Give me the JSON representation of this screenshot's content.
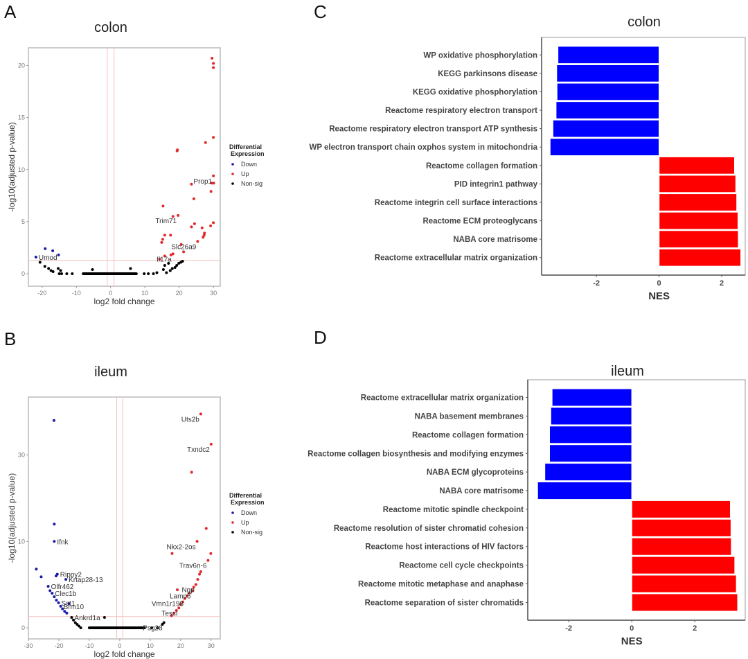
{
  "chart_data": [
    {
      "id": "A",
      "type": "scatter",
      "panel_letter": "A",
      "title": "colon",
      "xlabel": "log2 fold change",
      "ylabel": "-log10(adjusted p-value)",
      "xlim": [
        -24,
        32
      ],
      "ylim": [
        -1.2,
        21.7
      ],
      "x_ticks": [
        -20,
        -10,
        0,
        10,
        20,
        30
      ],
      "y_ticks": [
        0,
        5,
        10,
        15,
        20
      ],
      "fc_threshold_lines": [
        -1,
        1
      ],
      "p_threshold_line": 1.3,
      "legend": {
        "title": "Differential Expression",
        "position": "right",
        "entries": [
          {
            "label": "Down",
            "color": "#1a1aa8"
          },
          {
            "label": "Up",
            "color": "#e0282e"
          },
          {
            "label": "Non-sig",
            "color": "#000000"
          }
        ]
      },
      "series": [
        {
          "name": "Down",
          "points": [
            [
              -21.8,
              1.6
            ],
            [
              -19.1,
              2.4
            ],
            [
              -16.9,
              2.2
            ],
            [
              -15.2,
              1.8
            ]
          ]
        },
        {
          "name": "Up",
          "points": [
            [
              29.6,
              20.7
            ],
            [
              30.0,
              20.2
            ],
            [
              30.0,
              19.8
            ],
            [
              30.0,
              13.1
            ],
            [
              27.7,
              12.6
            ],
            [
              19.4,
              11.8
            ],
            [
              19.5,
              11.9
            ],
            [
              30.0,
              9.4
            ],
            [
              29.5,
              8.7
            ],
            [
              30.1,
              8.7
            ],
            [
              23.6,
              8.6
            ],
            [
              29.3,
              7.9
            ],
            [
              24.3,
              7.2
            ],
            [
              15.3,
              6.5
            ],
            [
              18.2,
              5.5
            ],
            [
              19.7,
              5.6
            ],
            [
              24.5,
              4.8
            ],
            [
              30.0,
              4.9
            ],
            [
              29.2,
              4.6
            ],
            [
              23.6,
              4.5
            ],
            [
              26.7,
              4.4
            ],
            [
              15.8,
              3.7
            ],
            [
              17.5,
              3.7
            ],
            [
              27.4,
              3.9
            ],
            [
              27.3,
              3.7
            ],
            [
              27.0,
              3.5
            ],
            [
              15.2,
              3.3
            ],
            [
              14.9,
              3.0
            ],
            [
              25.4,
              3.1
            ],
            [
              20.6,
              2.8
            ],
            [
              21.3,
              2.1
            ],
            [
              18.2,
              1.9
            ],
            [
              14.3,
              1.4
            ],
            [
              15.8,
              1.7
            ],
            [
              17.6,
              1.8
            ]
          ]
        },
        {
          "name": "Non-sig",
          "points": [
            [
              -20.6,
              1.1
            ],
            [
              -19.2,
              0.7
            ],
            [
              -18.1,
              0.5
            ],
            [
              -17.4,
              0.3
            ],
            [
              -16.8,
              0.2
            ],
            [
              -15.3,
              0.5
            ],
            [
              -14.6,
              0.3
            ],
            [
              -15.0,
              0.0
            ],
            [
              -14.3,
              0.0
            ],
            [
              -12.8,
              0.0
            ],
            [
              -11.2,
              0.0
            ],
            [
              -5.3,
              0.4
            ],
            [
              5.8,
              0.5
            ],
            [
              -8.0,
              0.0
            ],
            [
              -6.0,
              0.0
            ],
            [
              -4.0,
              0.0
            ],
            [
              -2.0,
              0.0
            ],
            [
              0.0,
              0.0
            ],
            [
              2.0,
              0.0
            ],
            [
              4.0,
              0.0
            ],
            [
              6.0,
              0.0
            ],
            [
              7.5,
              0.0
            ],
            [
              9.8,
              0.0
            ],
            [
              11.0,
              0.0
            ],
            [
              12.5,
              0.0
            ],
            [
              13.5,
              0.1
            ],
            [
              15.4,
              0.4
            ],
            [
              15.8,
              0.8
            ],
            [
              16.3,
              0.1
            ],
            [
              16.9,
              1.0
            ],
            [
              17.4,
              0.3
            ],
            [
              18.0,
              0.5
            ],
            [
              18.8,
              0.6
            ],
            [
              19.3,
              0.8
            ],
            [
              19.9,
              1.0
            ],
            [
              20.5,
              1.1
            ],
            [
              21.0,
              1.2
            ]
          ]
        }
      ],
      "annotations": [
        {
          "label": "Prop1",
          "x": 30.0,
          "y": 9.4
        },
        {
          "label": "Trim71",
          "x": 19.7,
          "y": 5.6
        },
        {
          "label": "Slc26a9",
          "x": 25.4,
          "y": 3.1
        },
        {
          "label": "Il17a",
          "x": 18.2,
          "y": 1.9
        },
        {
          "label": "Umod",
          "x": -21.8,
          "y": 1.6
        }
      ]
    },
    {
      "id": "B",
      "type": "scatter",
      "panel_letter": "B",
      "title": "ileum",
      "xlabel": "log2 fold change",
      "ylabel": "-log10(adjusted p-value)",
      "xlim": [
        -30,
        33
      ],
      "y_scale_note": "non-linear axis; tick labels 0, 10, 30 equally spaced",
      "y_ticks": [
        0,
        10,
        30
      ],
      "x_ticks": [
        -30,
        -20,
        -10,
        0,
        10,
        20,
        30
      ],
      "fc_threshold_lines": [
        -1,
        1
      ],
      "p_threshold_line": 1.3,
      "legend": {
        "title": "Differential Expression",
        "position": "right",
        "entries": [
          {
            "label": "Down",
            "color": "#1a1aa8"
          },
          {
            "label": "Up",
            "color": "#e0282e"
          },
          {
            "label": "Non-sig",
            "color": "#000000"
          }
        ]
      },
      "series": [
        {
          "name": "Down",
          "points": [
            [
              -21.6,
              38.0
            ],
            [
              -21.5,
              14.0
            ],
            [
              -21.5,
              10.0
            ],
            [
              -27.4,
              6.8
            ],
            [
              -25.8,
              5.9
            ],
            [
              -20.5,
              6.2
            ],
            [
              -20.9,
              6.0
            ],
            [
              -17.7,
              5.6
            ],
            [
              -23.5,
              4.8
            ],
            [
              -22.9,
              4.3
            ],
            [
              -22.2,
              4.0
            ],
            [
              -21.5,
              3.6
            ],
            [
              -20.8,
              3.2
            ],
            [
              -20.1,
              2.9
            ],
            [
              -19.4,
              2.5
            ],
            [
              -18.8,
              2.2
            ],
            [
              -18.1,
              1.9
            ],
            [
              -17.4,
              1.7
            ],
            [
              -16.7,
              2.8
            ]
          ]
        },
        {
          "name": "Up",
          "points": [
            [
              26.6,
              39.5
            ],
            [
              30.0,
              32.5
            ],
            [
              23.6,
              26.0
            ],
            [
              28.4,
              13.0
            ],
            [
              25.4,
              10.0
            ],
            [
              17.2,
              8.6
            ],
            [
              29.9,
              8.6
            ],
            [
              29.0,
              7.8
            ],
            [
              26.6,
              6.5
            ],
            [
              26.2,
              6.2
            ],
            [
              25.6,
              5.6
            ],
            [
              25.0,
              5.0
            ],
            [
              24.3,
              4.7
            ],
            [
              23.8,
              4.3
            ],
            [
              18.9,
              4.4
            ],
            [
              22.9,
              4.0
            ],
            [
              22.1,
              3.7
            ],
            [
              21.4,
              3.4
            ],
            [
              20.7,
              3.0
            ],
            [
              20.0,
              2.7
            ],
            [
              19.4,
              2.3
            ],
            [
              18.6,
              2.0
            ],
            [
              17.8,
              1.7
            ],
            [
              17.0,
              1.4
            ]
          ]
        },
        {
          "name": "Non-sig",
          "points": [
            [
              -15.8,
              1.2
            ],
            [
              -15.2,
              0.9
            ],
            [
              -14.6,
              0.6
            ],
            [
              -14.0,
              0.4
            ],
            [
              -13.4,
              0.2
            ],
            [
              -12.8,
              0.0
            ],
            [
              -5.0,
              1.2
            ],
            [
              -10.0,
              0.0
            ],
            [
              -8.0,
              0.0
            ],
            [
              -6.0,
              0.0
            ],
            [
              -4.0,
              0.0
            ],
            [
              -2.0,
              0.0
            ],
            [
              0.0,
              0.0
            ],
            [
              2.0,
              0.0
            ],
            [
              4.0,
              0.0
            ],
            [
              6.0,
              0.0
            ],
            [
              8.0,
              0.0
            ],
            [
              10.5,
              0.0
            ],
            [
              12.4,
              0.0
            ],
            [
              14.0,
              0.4
            ],
            [
              14.5,
              0.6
            ]
          ]
        }
      ],
      "annotations": [
        {
          "label": "Uts2b",
          "x": 26.6,
          "y": 39.5
        },
        {
          "label": "Txndc2",
          "x": 30.0,
          "y": 32.5
        },
        {
          "label": "Ifnk",
          "x": -21.5,
          "y": 10.0
        },
        {
          "label": "Nkx2-2os",
          "x": 25.4,
          "y": 10.0
        },
        {
          "label": "Trav6n-6",
          "x": 29.0,
          "y": 7.8
        },
        {
          "label": "Rippy2",
          "x": -20.5,
          "y": 6.2
        },
        {
          "label": "Krtap28-13",
          "x": -17.7,
          "y": 5.6
        },
        {
          "label": "Olfr462",
          "x": -23.5,
          "y": 4.8
        },
        {
          "label": "Clec1b",
          "x": -22.2,
          "y": 4.0
        },
        {
          "label": "Ngp",
          "x": 25.0,
          "y": 5.0
        },
        {
          "label": "Lamp5",
          "x": 23.8,
          "y": 4.3
        },
        {
          "label": "Vmn1r198",
          "x": 21.4,
          "y": 3.4
        },
        {
          "label": "Sst1",
          "x": -20.1,
          "y": 2.9
        },
        {
          "label": "Brm10",
          "x": -19.4,
          "y": 2.5
        },
        {
          "label": "Tescl",
          "x": 19.4,
          "y": 2.3
        },
        {
          "label": "Ankrd1a",
          "x": -15.8,
          "y": 1.2
        },
        {
          "label": "Psg28",
          "x": 14.5,
          "y": 0.6
        }
      ]
    },
    {
      "id": "C",
      "type": "bar",
      "orientation": "horizontal",
      "panel_letter": "C",
      "title": "colon",
      "xlabel": "NES",
      "xlim": [
        -3.75,
        2.75
      ],
      "x_ticks": [
        -2,
        0,
        2
      ],
      "categories": [
        "WP oxidative phosphorylation",
        "KEGG parkinsons disease",
        "KEGG oxidative phosphorylation",
        "Reactome respiratory electron transport",
        "Reactome respiratory electron transport ATP synthesis",
        "WP electron transport chain oxphos system in mitochondria",
        "Reactome collagen formation",
        "PID integrin1 pathway",
        "Reactome integrin cell surface interactions",
        "Reactome ECM proteoglycans",
        "NABA core matrisome",
        "Reactome extracellular matrix organization"
      ],
      "values": [
        -3.23,
        -3.27,
        -3.26,
        -3.29,
        -3.39,
        -3.48,
        2.41,
        2.45,
        2.48,
        2.52,
        2.53,
        2.61
      ],
      "colors": {
        "negative": "#0000ff",
        "positive": "#ff0000"
      }
    },
    {
      "id": "D",
      "type": "bar",
      "orientation": "horizontal",
      "panel_letter": "D",
      "title": "ileum",
      "xlabel": "NES",
      "xlim": [
        -3.3,
        3.6
      ],
      "x_ticks": [
        -2,
        0,
        2
      ],
      "categories": [
        "Reactome extracellular matrix organization",
        "NABA basement membranes",
        "Reactome collagen formation",
        "Reactome collagen biosynthesis and modifying enzymes",
        "NABA ECM glycoproteins",
        "NABA core matrisome",
        "Reactome mitotic spindle checkpoint",
        "Reactome resolution of sister chromatid cohesion",
        "Reactome host interactions of HIV factors",
        "Reactome cell cycle checkpoints",
        "Reactome mitotic metaphase and anaphase",
        "Reactome separation of sister chromatids"
      ],
      "values": [
        -2.53,
        -2.57,
        -2.61,
        -2.61,
        -2.76,
        -2.99,
        3.13,
        3.15,
        3.16,
        3.27,
        3.32,
        3.36
      ],
      "colors": {
        "negative": "#0000ff",
        "positive": "#ff0000"
      }
    }
  ]
}
